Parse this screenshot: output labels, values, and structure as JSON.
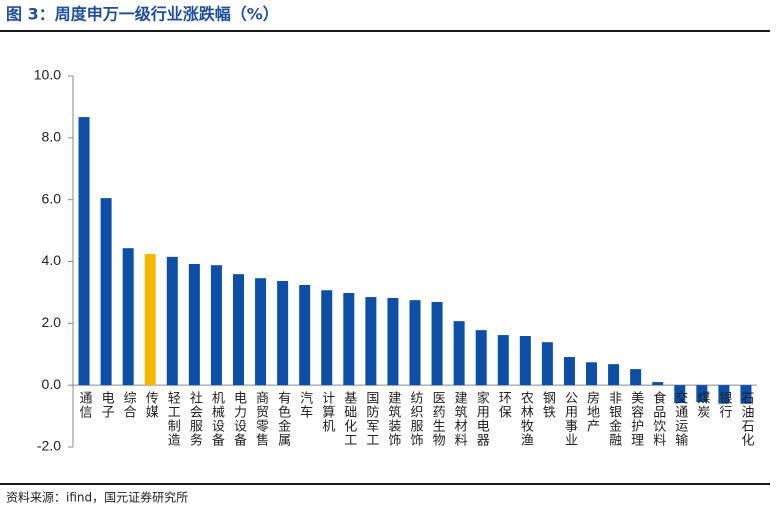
{
  "chart_data": {
    "type": "bar",
    "title": "图 3：周度申万一级行业涨跌幅（%）",
    "source": "资料来源：ifind，国元证券研究所",
    "categories": [
      "通信",
      "电子",
      "综合",
      "传媒",
      "轻工制造",
      "社会服务",
      "机械设备",
      "电力设备",
      "商贸零售",
      "有色金属",
      "汽车",
      "计算机",
      "基础化工",
      "国防军工",
      "建筑装饰",
      "纺织服饰",
      "医药生物",
      "建筑材料",
      "家用电器",
      "环保",
      "农林牧渔",
      "钢铁",
      "公用事业",
      "房地产",
      "非银金融",
      "美容护理",
      "食品饮料",
      "交通运输",
      "煤炭",
      "银行",
      "石油石化"
    ],
    "values": [
      8.67,
      6.05,
      4.43,
      4.24,
      4.15,
      3.92,
      3.88,
      3.59,
      3.46,
      3.37,
      3.24,
      3.07,
      2.98,
      2.85,
      2.82,
      2.75,
      2.69,
      2.07,
      1.78,
      1.62,
      1.59,
      1.39,
      0.91,
      0.74,
      0.68,
      0.52,
      0.1,
      -0.58,
      -0.55,
      -0.6,
      -0.6
    ],
    "colors": [
      "#0d4ea6",
      "#0d4ea6",
      "#0d4ea6",
      "#f5b800",
      "#0d4ea6",
      "#0d4ea6",
      "#0d4ea6",
      "#0d4ea6",
      "#0d4ea6",
      "#0d4ea6",
      "#0d4ea6",
      "#0d4ea6",
      "#0d4ea6",
      "#0d4ea6",
      "#0d4ea6",
      "#0d4ea6",
      "#0d4ea6",
      "#0d4ea6",
      "#0d4ea6",
      "#0d4ea6",
      "#0d4ea6",
      "#0d4ea6",
      "#0d4ea6",
      "#0d4ea6",
      "#0d4ea6",
      "#0d4ea6",
      "#0d4ea6",
      "#0d4ea6",
      "#0d4ea6",
      "#0d4ea6",
      "#0d4ea6"
    ],
    "ylim": [
      -2,
      10
    ],
    "yticks": [
      {
        "value": -2,
        "label": "-2.0"
      },
      {
        "value": 0,
        "label": "0.0"
      },
      {
        "value": 2,
        "label": "2.0"
      },
      {
        "value": 4,
        "label": "4.0"
      },
      {
        "value": 6,
        "label": "6.0"
      },
      {
        "value": 8,
        "label": "8.0"
      },
      {
        "value": 10,
        "label": "10.0"
      }
    ],
    "grid": false
  }
}
